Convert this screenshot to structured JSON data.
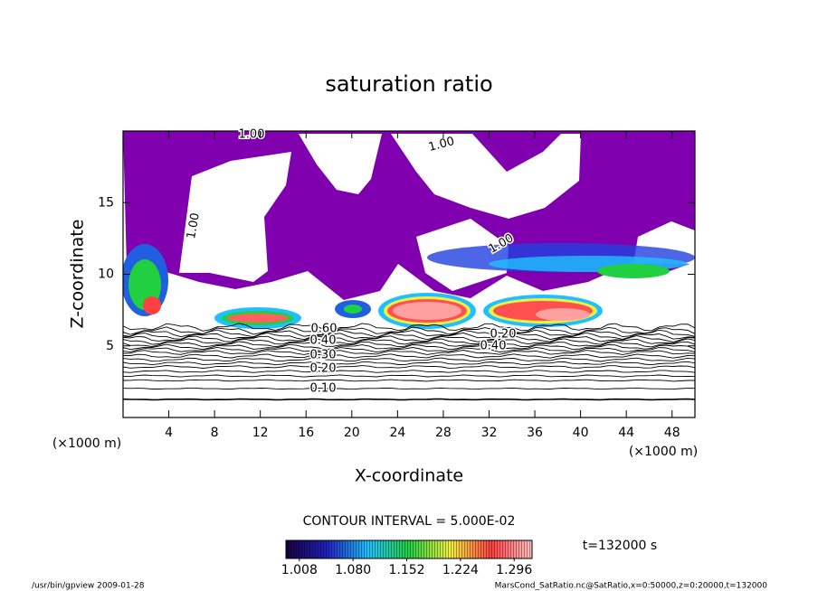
{
  "chart_data": {
    "type": "contour",
    "title": "saturation ratio",
    "xlabel": "X-coordinate",
    "ylabel": "Z-coordinate",
    "x_unit": "(×1000 m)",
    "y_unit": "(×1000 m)",
    "xlim": [
      0,
      50
    ],
    "xticks": [
      4,
      8,
      12,
      16,
      20,
      24,
      28,
      32,
      36,
      40,
      44,
      48
    ],
    "ylim": [
      0,
      20
    ],
    "yticks": [
      5,
      10,
      15
    ],
    "contour_interval": "CONTOUR INTERVAL = 5.000E-02",
    "time": "t=132000 s",
    "contour_labels": [
      "1.00",
      "1.00",
      "1.00",
      "1.00",
      "0.60",
      "0.40",
      "0.30",
      "0.20",
      "0.10",
      "0.40",
      "0.20"
    ],
    "fill_color": "#8000b0",
    "colorbar": {
      "clim": [
        0.99,
        1.32
      ],
      "ticks": [
        1.008,
        {
          "value": 1.08,
          "label": "1.080"
        },
        1.152,
        1.224,
        1.296
      ],
      "colormap": [
        "#1a0040",
        "#2020c0",
        "#20c0ff",
        "#20d040",
        "#f0f040",
        "#ff4040",
        "#ffc0c0"
      ]
    },
    "footer_left": "/usr/bin/gpview  2009-01-28",
    "footer_right": "MarsCond_SatRatio.nc@SatRatio,x=0:50000,z=0:20000,t=132000"
  }
}
